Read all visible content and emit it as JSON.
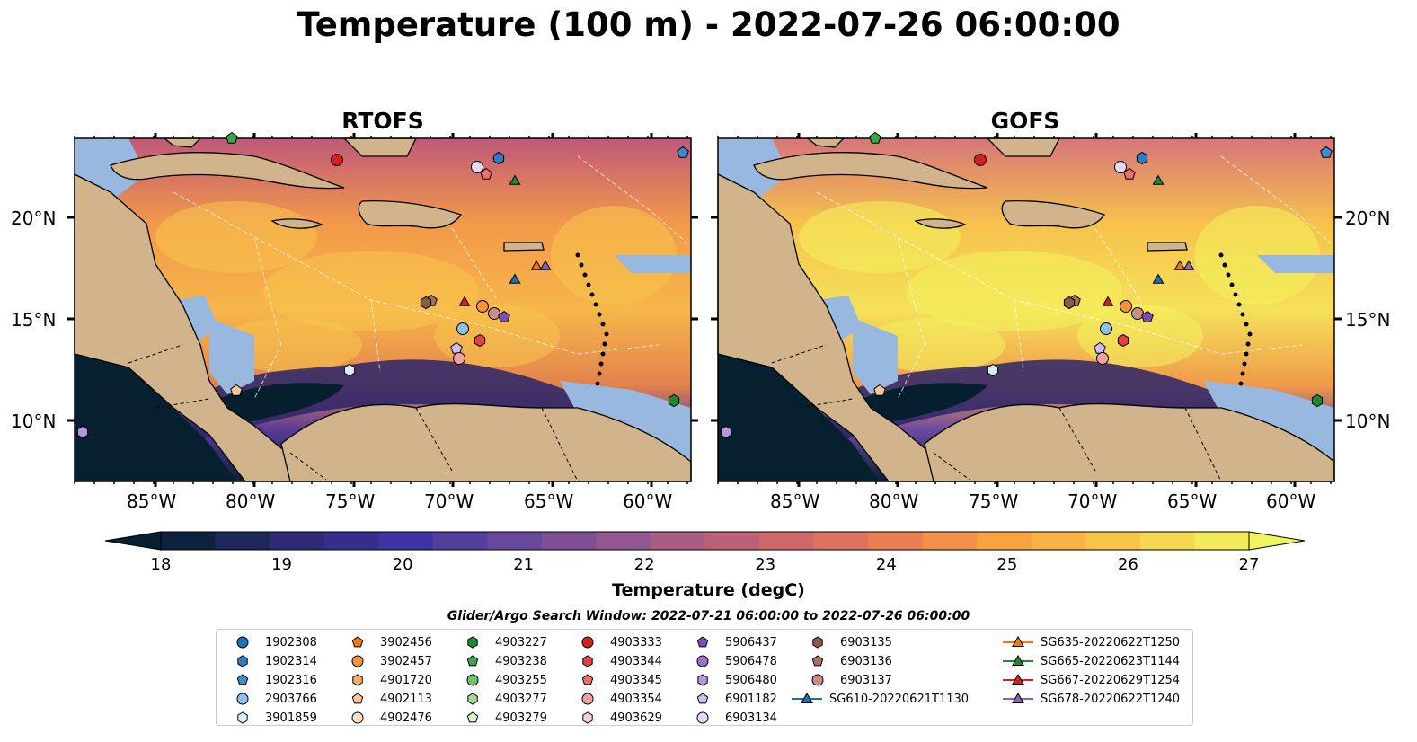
{
  "title": "Temperature (100 m) - 2022-07-26 06:00:00",
  "panels": [
    {
      "title": "RTOFS",
      "lat_labels": [
        "20°N",
        "15°N",
        "10°N"
      ],
      "lon_labels": [
        "85°W",
        "80°W",
        "75°W",
        "70°W",
        "65°W",
        "60°W"
      ]
    },
    {
      "title": "GOFS",
      "lat_labels": [
        "20°N",
        "15°N",
        "10°N"
      ],
      "lon_labels": [
        "85°W",
        "80°W",
        "75°W",
        "70°W",
        "65°W",
        "60°W"
      ]
    }
  ],
  "colorbar": {
    "label": "Temperature (degC)",
    "ticks": [
      "18",
      "19",
      "20",
      "21",
      "22",
      "23",
      "24",
      "25",
      "26",
      "27"
    ],
    "min": 18,
    "max": 27,
    "colors": [
      "#06202f",
      "#2a2a6e",
      "#3b33a0",
      "#6b4a9a",
      "#9a5a8c",
      "#c8646e",
      "#ea7a55",
      "#f9a43f",
      "#f7c84b",
      "#f0f55c"
    ]
  },
  "search_window": "Glider/Argo Search Window: 2022-07-21 06:00:00 to 2022-07-26 06:00:00",
  "legend": [
    {
      "label": "1902308",
      "marker": "circle",
      "color": "#1f6fb4"
    },
    {
      "label": "1902314",
      "marker": "hexagon",
      "color": "#2e7cc2"
    },
    {
      "label": "1902316",
      "marker": "pentagon",
      "color": "#3d8bd0"
    },
    {
      "label": "2903766",
      "marker": "circle",
      "color": "#8ec1e6"
    },
    {
      "label": "3901859",
      "marker": "hexagon",
      "color": "#d6ecfa"
    },
    {
      "label": "3902456",
      "marker": "pentagon",
      "color": "#f07a10"
    },
    {
      "label": "3902457",
      "marker": "circle",
      "color": "#f5923a"
    },
    {
      "label": "4901720",
      "marker": "hexagon",
      "color": "#f8ad6a"
    },
    {
      "label": "4902113",
      "marker": "pentagon",
      "color": "#fac59a"
    },
    {
      "label": "4902476",
      "marker": "circle",
      "color": "#fde0c6"
    },
    {
      "label": "4903227",
      "marker": "hexagon",
      "color": "#1e8a2e"
    },
    {
      "label": "4903238",
      "marker": "pentagon",
      "color": "#3aa64a"
    },
    {
      "label": "4903255",
      "marker": "circle",
      "color": "#6cc56a"
    },
    {
      "label": "4903277",
      "marker": "hexagon",
      "color": "#9edb90"
    },
    {
      "label": "4903279",
      "marker": "pentagon",
      "color": "#d2f2c4"
    },
    {
      "label": "4903333",
      "marker": "circle",
      "color": "#d42020"
    },
    {
      "label": "4903344",
      "marker": "hexagon",
      "color": "#e64040"
    },
    {
      "label": "4903345",
      "marker": "pentagon",
      "color": "#ef6c6c"
    },
    {
      "label": "4903354",
      "marker": "circle",
      "color": "#f5a0a0"
    },
    {
      "label": "4903629",
      "marker": "hexagon",
      "color": "#fbd0d0"
    },
    {
      "label": "5906437",
      "marker": "pentagon",
      "color": "#7b4fb0"
    },
    {
      "label": "5906478",
      "marker": "circle",
      "color": "#9a72c8"
    },
    {
      "label": "5906480",
      "marker": "hexagon",
      "color": "#b596dc"
    },
    {
      "label": "6901182",
      "marker": "pentagon",
      "color": "#d0bdf0"
    },
    {
      "label": "6903134",
      "marker": "circle",
      "color": "#e6d8fb"
    },
    {
      "label": "6903135",
      "marker": "hexagon",
      "color": "#8a5a48"
    },
    {
      "label": "6903136",
      "marker": "pentagon",
      "color": "#a8705e"
    },
    {
      "label": "6903137",
      "marker": "circle",
      "color": "#c98e80"
    },
    {
      "label": "SG610-20220621T1130",
      "marker": "triangle-line",
      "color": "#1f6fb4"
    },
    {
      "label": "SG635-20220622T1250",
      "marker": "triangle-line",
      "color": "#f07a10"
    },
    {
      "label": "SG665-20220623T1144",
      "marker": "triangle-line",
      "color": "#1e8a2e"
    },
    {
      "label": "SG667-20220629T1254",
      "marker": "triangle-line",
      "color": "#d42020"
    },
    {
      "label": "SG678-20220622T1240",
      "marker": "triangle-line",
      "color": "#8a64b8"
    }
  ],
  "colors": {
    "land": "#d2b48c",
    "shallow_water": "#98b8e0",
    "deep_cold": "#06202f"
  }
}
